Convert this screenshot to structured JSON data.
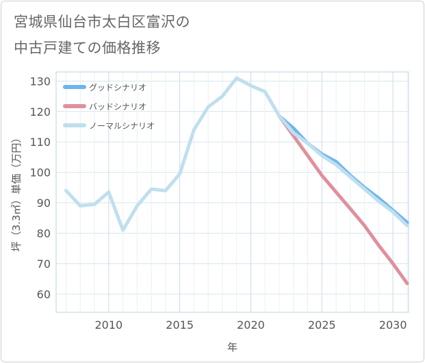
{
  "title_lines": [
    "宮城県仙台市太白区富沢の",
    "中古戸建ての価格推移"
  ],
  "chart_data": {
    "type": "line",
    "title": "宮城県仙台市太白区富沢の中古戸建ての価格推移",
    "xlabel": "年",
    "ylabel": "坪（3.3㎡）単価（万円）",
    "xlim": [
      2006.3,
      2031.1
    ],
    "ylim": [
      54,
      133
    ],
    "xticks": [
      2010,
      2015,
      2020,
      2025,
      2030
    ],
    "yticks": [
      60,
      70,
      80,
      90,
      100,
      110,
      120,
      130
    ],
    "grid": true,
    "legend_position": "top-left",
    "series": [
      {
        "name": "グッドシナリオ",
        "color": "#6cb6ee",
        "x": [
          2022,
          2023,
          2024,
          2025,
          2026,
          2027,
          2028,
          2029,
          2030,
          2031
        ],
        "y": [
          118.5,
          114.5,
          109.5,
          106.0,
          103.5,
          99.0,
          95.0,
          91.5,
          87.5,
          83.5
        ]
      },
      {
        "name": "バッドシナリオ",
        "color": "#e0909c",
        "x": [
          2022,
          2023,
          2024,
          2025,
          2026,
          2027,
          2028,
          2029,
          2030,
          2031
        ],
        "y": [
          118.5,
          112.0,
          105.5,
          99.0,
          93.5,
          88.0,
          82.5,
          76.0,
          70.0,
          63.5
        ]
      },
      {
        "name": "ノーマルシナリオ",
        "color": "#c0dfee",
        "x": [
          2007,
          2008,
          2009,
          2010,
          2011,
          2012,
          2013,
          2014,
          2015,
          2016,
          2017,
          2018,
          2019,
          2020,
          2021,
          2022,
          2023,
          2024,
          2025,
          2026,
          2027,
          2028,
          2029,
          2030,
          2031
        ],
        "y": [
          94.0,
          89.0,
          89.5,
          93.5,
          81.0,
          89.0,
          94.5,
          94.0,
          99.5,
          114.0,
          121.5,
          125.0,
          131.0,
          128.5,
          126.5,
          118.5,
          113.0,
          109.5,
          105.5,
          102.5,
          98.5,
          94.5,
          90.5,
          87.0,
          82.5
        ]
      }
    ]
  }
}
